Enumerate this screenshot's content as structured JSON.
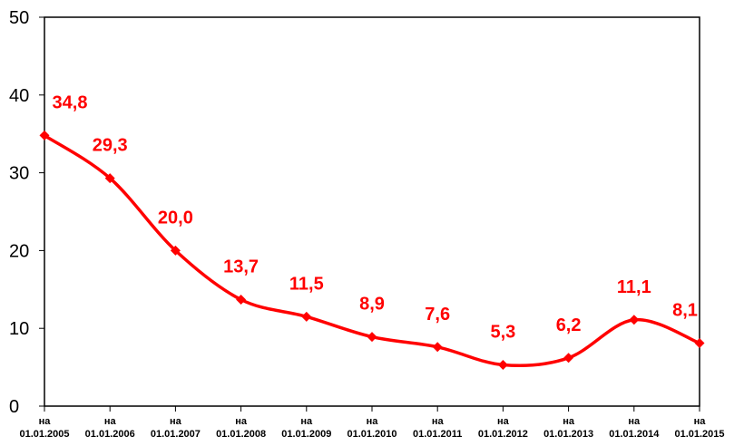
{
  "chart_data": {
    "type": "line",
    "categories": [
      [
        "на",
        "01.01.2005"
      ],
      [
        "на",
        "01.01.2006"
      ],
      [
        "на",
        "01.01.2007"
      ],
      [
        "на",
        "01.01.2008"
      ],
      [
        "на",
        "01.01.2009"
      ],
      [
        "на",
        "01.01.2010"
      ],
      [
        "на",
        "01.01.2011"
      ],
      [
        "на",
        "01.01.2012"
      ],
      [
        "на",
        "01.01.2013"
      ],
      [
        "на",
        "01.01.2014"
      ],
      [
        "на",
        "01.01.2015"
      ]
    ],
    "series": [
      {
        "values": [
          34.8,
          29.3,
          20.0,
          13.7,
          11.5,
          8.9,
          7.6,
          5.3,
          6.2,
          11.1,
          8.1
        ],
        "labels": [
          "34,8",
          "29,3",
          "20,0",
          "13,7",
          "11,5",
          "8,9",
          "7,6",
          "5,3",
          "6,2",
          "11,1",
          "8,1"
        ],
        "color": "#ff0000",
        "marker": "diamond",
        "smooth": true
      }
    ],
    "ylim": [
      0,
      50
    ],
    "yticks": [
      "0",
      "10",
      "20",
      "30",
      "40",
      "50"
    ],
    "grid": false,
    "legend": "none",
    "frame_color": "#000000"
  }
}
